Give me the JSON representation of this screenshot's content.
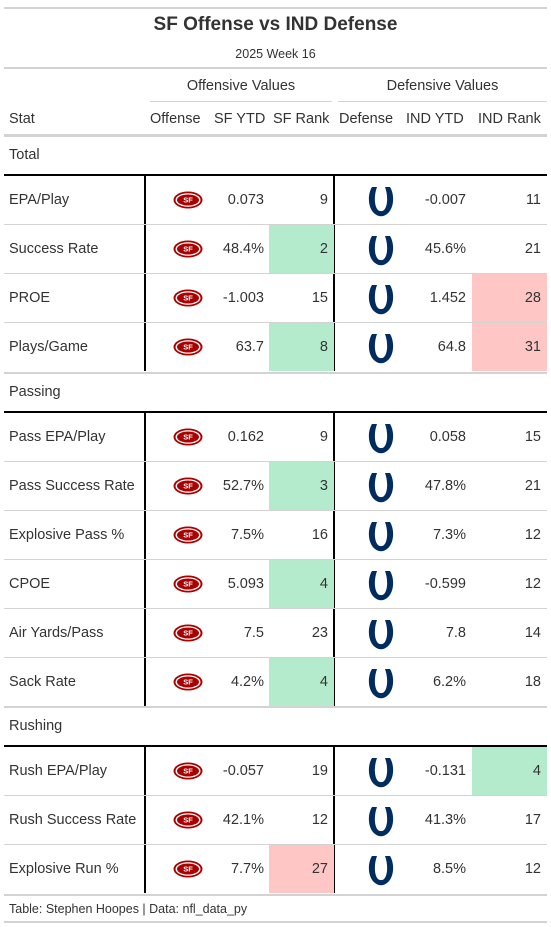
{
  "title": "SF Offense vs IND Defense",
  "subtitle": "2025 Week 16",
  "spanners": {
    "offense": "Offensive Values",
    "defense": "Defensive Values"
  },
  "columns": {
    "stat": "Stat",
    "offense": "Offense",
    "sf_ytd": "SF YTD",
    "sf_rank": "SF Rank",
    "defense": "Defense",
    "ind_ytd": "IND YTD",
    "ind_rank": "IND Rank"
  },
  "colors": {
    "rank_good": "#b4ebcc",
    "rank_bad": "#ffc6c6",
    "sf_red": "#aa0000",
    "sf_gold": "#b3995d",
    "ind_blue": "#002c5f"
  },
  "icons": {
    "offense_logo": "sf-49ers-logo-icon",
    "defense_logo": "colts-horseshoe-logo-icon"
  },
  "groups": [
    {
      "label": "Total",
      "rows": [
        {
          "stat": "EPA/Play",
          "sf_ytd": "0.073",
          "sf_rank": "9",
          "sf_hl": "",
          "ind_ytd": "-0.007",
          "ind_rank": "11",
          "ind_hl": ""
        },
        {
          "stat": "Success Rate",
          "sf_ytd": "48.4%",
          "sf_rank": "2",
          "sf_hl": "good",
          "ind_ytd": "45.6%",
          "ind_rank": "21",
          "ind_hl": ""
        },
        {
          "stat": "PROE",
          "sf_ytd": "-1.003",
          "sf_rank": "15",
          "sf_hl": "",
          "ind_ytd": "1.452",
          "ind_rank": "28",
          "ind_hl": "bad"
        },
        {
          "stat": "Plays/Game",
          "sf_ytd": "63.7",
          "sf_rank": "8",
          "sf_hl": "good",
          "ind_ytd": "64.8",
          "ind_rank": "31",
          "ind_hl": "bad"
        }
      ]
    },
    {
      "label": "Passing",
      "rows": [
        {
          "stat": "Pass EPA/Play",
          "sf_ytd": "0.162",
          "sf_rank": "9",
          "sf_hl": "",
          "ind_ytd": "0.058",
          "ind_rank": "15",
          "ind_hl": ""
        },
        {
          "stat": "Pass Success Rate",
          "sf_ytd": "52.7%",
          "sf_rank": "3",
          "sf_hl": "good",
          "ind_ytd": "47.8%",
          "ind_rank": "21",
          "ind_hl": ""
        },
        {
          "stat": "Explosive Pass %",
          "sf_ytd": "7.5%",
          "sf_rank": "16",
          "sf_hl": "",
          "ind_ytd": "7.3%",
          "ind_rank": "12",
          "ind_hl": ""
        },
        {
          "stat": "CPOE",
          "sf_ytd": "5.093",
          "sf_rank": "4",
          "sf_hl": "good",
          "ind_ytd": "-0.599",
          "ind_rank": "12",
          "ind_hl": ""
        },
        {
          "stat": "Air Yards/Pass",
          "sf_ytd": "7.5",
          "sf_rank": "23",
          "sf_hl": "",
          "ind_ytd": "7.8",
          "ind_rank": "14",
          "ind_hl": ""
        },
        {
          "stat": "Sack Rate",
          "sf_ytd": "4.2%",
          "sf_rank": "4",
          "sf_hl": "good",
          "ind_ytd": "6.2%",
          "ind_rank": "18",
          "ind_hl": ""
        }
      ]
    },
    {
      "label": "Rushing",
      "rows": [
        {
          "stat": "Rush EPA/Play",
          "sf_ytd": "-0.057",
          "sf_rank": "19",
          "sf_hl": "",
          "ind_ytd": "-0.131",
          "ind_rank": "4",
          "ind_hl": "good"
        },
        {
          "stat": "Rush Success Rate",
          "sf_ytd": "42.1%",
          "sf_rank": "12",
          "sf_hl": "",
          "ind_ytd": "41.3%",
          "ind_rank": "17",
          "ind_hl": ""
        },
        {
          "stat": "Explosive Run %",
          "sf_ytd": "7.7%",
          "sf_rank": "27",
          "sf_hl": "bad",
          "ind_ytd": "8.5%",
          "ind_rank": "12",
          "ind_hl": ""
        }
      ]
    }
  ],
  "footer": "Table: Stephen Hoopes | Data: nfl_data_py"
}
